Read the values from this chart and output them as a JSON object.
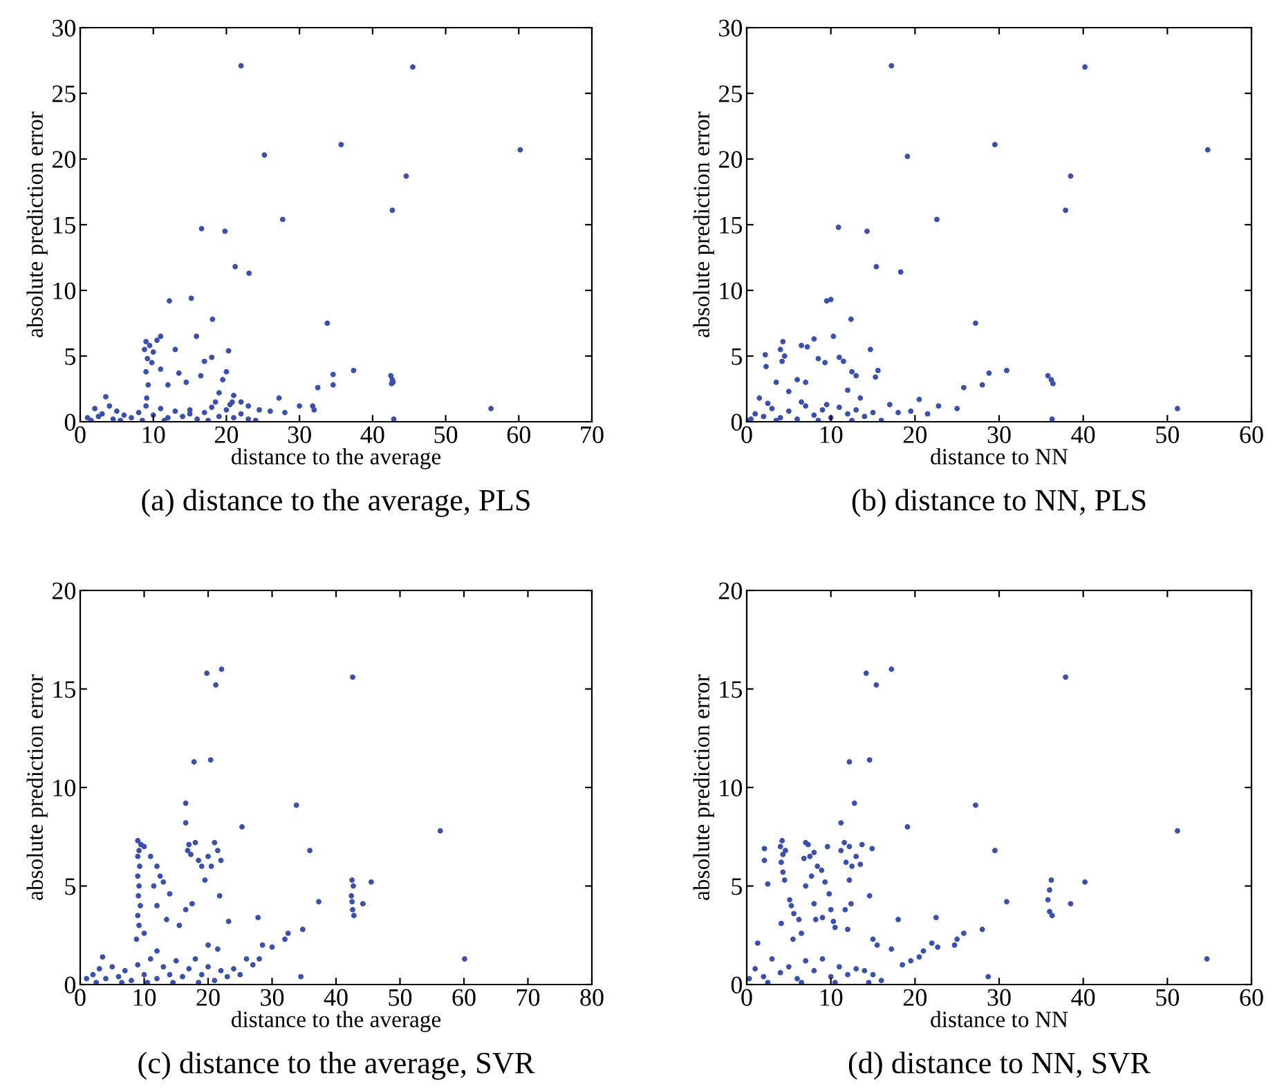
{
  "chart_data": [
    {
      "type": "scatter",
      "title": "(a) distance to the average, PLS",
      "xlabel": "distance to the average",
      "ylabel": "absolute prediction error",
      "marker": "circle",
      "grid": false,
      "xlim": [
        0,
        70
      ],
      "ylim": [
        0,
        30
      ],
      "xticks": [
        0,
        10,
        20,
        30,
        40,
        50,
        60,
        70
      ],
      "yticks": [
        0,
        5,
        10,
        15,
        20,
        25,
        30
      ],
      "series": [
        {
          "color": "#3b4fae",
          "x": [
            22,
            45.5,
            25.2,
            35.7,
            60.2,
            44.6,
            42.7,
            16.6,
            19.8,
            27.7,
            21.2,
            23.1,
            12.2,
            15.2,
            18.1,
            33.8,
            15.9,
            11,
            20.3,
            13,
            34.6,
            37.4,
            34.6,
            32.5,
            42.5,
            42.7,
            42.8,
            42.6,
            56.2,
            42.9,
            27.2,
            30,
            31.8,
            32,
            28,
            26,
            24.5,
            23,
            22,
            21,
            20,
            19.5,
            18,
            17,
            16.5,
            14.5,
            13.5,
            12,
            11,
            9.0,
            8.8,
            9.2,
            9.0,
            9.3,
            9.5,
            10,
            10.5,
            9.8,
            9.1,
            19,
            20.8,
            15,
            3.5,
            2,
            4,
            5,
            1,
            1.5,
            2.5,
            3,
            4.5,
            6,
            7,
            8,
            9,
            10,
            11,
            12,
            13,
            14,
            15,
            16,
            17,
            18,
            19,
            20,
            21,
            22,
            23,
            24,
            5.5,
            8.5,
            11.5,
            17.5,
            18.5,
            20.5
          ],
          "values": [
            27.1,
            27,
            20.3,
            21.1,
            20.7,
            18.7,
            16.1,
            14.7,
            14.5,
            15.4,
            11.8,
            11.3,
            9.2,
            9.4,
            7.8,
            7.5,
            6.5,
            6.5,
            5.4,
            5.5,
            3.6,
            3.9,
            2.8,
            2.6,
            3.5,
            3.2,
            3.0,
            2.9,
            1.0,
            0.2,
            1.8,
            1.2,
            1.2,
            0.9,
            0.7,
            0.8,
            0.9,
            1.2,
            1.5,
            2,
            3.8,
            3.2,
            4.9,
            4.6,
            3.5,
            3.0,
            3.7,
            2.8,
            4.0,
            6.1,
            5.5,
            4.8,
            3.8,
            2.8,
            5.8,
            5.3,
            6.2,
            4.5,
            1.8,
            2.2,
            1.5,
            0.9,
            1.9,
            1.0,
            1.2,
            0.8,
            0.3,
            0.1,
            0.4,
            0.6,
            0.2,
            0.5,
            0.3,
            0.7,
            1.2,
            0.5,
            1.0,
            0.3,
            0.8,
            0.4,
            0.6,
            0.2,
            0.7,
            1.1,
            0.4,
            0.9,
            0.3,
            0.6,
            0.2,
            0.1,
            0.1,
            0.1,
            0.1,
            0.1,
            1.5,
            1.3
          ]
        }
      ]
    },
    {
      "type": "scatter",
      "title": "(b) distance to NN, PLS",
      "xlabel": "distance to NN",
      "ylabel": "absolute prediction error",
      "marker": "circle",
      "grid": false,
      "xlim": [
        0,
        60
      ],
      "ylim": [
        0,
        30
      ],
      "xticks": [
        0,
        10,
        20,
        30,
        40,
        50,
        60
      ],
      "yticks": [
        0,
        5,
        10,
        15,
        20,
        25,
        30
      ],
      "series": [
        {
          "color": "#3b4fae",
          "x": [
            17.2,
            40.2,
            19.1,
            29.5,
            54.8,
            38.5,
            37.9,
            10.9,
            14.3,
            22.6,
            15.4,
            18.3,
            9.5,
            10.0,
            12.4,
            27.2,
            10.3,
            14.7,
            8,
            4.3,
            4,
            4.5,
            4.2,
            2.3,
            2.2,
            6.5,
            7.2,
            8.5,
            9.3,
            11,
            11.5,
            12.5,
            13,
            3.5,
            5,
            6,
            7,
            12,
            13.5,
            15.3,
            15.6,
            20.5,
            22.8,
            25,
            25.8,
            28,
            28.8,
            30.9,
            35.8,
            36.2,
            36.4,
            36.3,
            51.2,
            17,
            18,
            19.5,
            21.5,
            16,
            0.5,
            1,
            1.5,
            2,
            3,
            4,
            5,
            6,
            7,
            8,
            9,
            10,
            11,
            12,
            13,
            14,
            15,
            2.5,
            6.5,
            9.5,
            0.3,
            3.5,
            8.5,
            12.5
          ],
          "values": [
            27.1,
            27,
            20.2,
            21.1,
            20.7,
            18.7,
            16.1,
            14.8,
            14.5,
            15.4,
            11.8,
            11.4,
            9.2,
            9.3,
            7.8,
            7.5,
            6.5,
            5.5,
            6.3,
            6.1,
            5.5,
            5,
            4.6,
            4.2,
            5.1,
            5.8,
            5.7,
            4.8,
            4.5,
            4.9,
            4.6,
            3.8,
            3.5,
            3.0,
            2.3,
            3.2,
            3.0,
            2.4,
            1.8,
            3.4,
            3.9,
            1.7,
            1.2,
            1.0,
            2.6,
            2.8,
            3.7,
            3.9,
            3.5,
            3.2,
            2.9,
            0.2,
            1.0,
            1.3,
            0.7,
            0.8,
            0.6,
            0.1,
            0.2,
            0.6,
            1.8,
            0.4,
            1.0,
            0.3,
            0.8,
            0.2,
            1.2,
            0.5,
            0.9,
            0.3,
            1.1,
            0.6,
            0.9,
            0.4,
            0.7,
            1.4,
            1.5,
            1.3,
            0.1,
            0.1,
            0.1,
            0.1
          ]
        }
      ]
    },
    {
      "type": "scatter",
      "title": "(c) distance to the average, SVR",
      "xlabel": "distance to the average",
      "ylabel": "absolute prediction error",
      "marker": "circle",
      "grid": false,
      "xlim": [
        0,
        80
      ],
      "ylim": [
        0,
        20
      ],
      "xticks": [
        0,
        10,
        20,
        30,
        40,
        50,
        60,
        70,
        80
      ],
      "yticks": [
        0,
        5,
        10,
        15,
        20
      ],
      "series": [
        {
          "color": "#3b4fae",
          "x": [
            19.8,
            22.1,
            21.2,
            42.6,
            17.8,
            20.4,
            16.5,
            33.8,
            16.5,
            25.3,
            56.3,
            35.9,
            9,
            9.5,
            10,
            9.2,
            9,
            9.3,
            9,
            9.2,
            9.1,
            9.4,
            9.0,
            9.2,
            8.8,
            10,
            11,
            12,
            12.5,
            13,
            11.5,
            12,
            13.5,
            14,
            15.5,
            16.5,
            17,
            18,
            16.8,
            17.3,
            18.5,
            19,
            20,
            21,
            20.5,
            21.5,
            22,
            19.5,
            21.8,
            23.2,
            17.5,
            12,
            20,
            21.5,
            26,
            27,
            28,
            27.8,
            28.5,
            30,
            32,
            32.5,
            34.8,
            34.5,
            37.3,
            42.5,
            42.7,
            42.4,
            42.5,
            42.6,
            42.8,
            44.2,
            45.5,
            60.1,
            1,
            2,
            3,
            3.5,
            4,
            5,
            6,
            7,
            8,
            9,
            10,
            11,
            12,
            13,
            14,
            15,
            16,
            17,
            18,
            19,
            20,
            21,
            22,
            23,
            24,
            25,
            2.5,
            6.5,
            10.5,
            14.5,
            18.5
          ],
          "values": [
            15.8,
            16,
            15.2,
            15.6,
            11.3,
            11.4,
            9.2,
            9.1,
            8.2,
            8,
            7.8,
            6.8,
            7.3,
            7.1,
            7,
            6.8,
            6.5,
            6.0,
            5.5,
            5.0,
            4.5,
            4.0,
            3.5,
            3.0,
            2.3,
            2.6,
            6.5,
            6.0,
            5.5,
            5.2,
            5.0,
            4.0,
            3.3,
            4.6,
            3.0,
            3.8,
            7.1,
            7.2,
            6.8,
            6.6,
            6.3,
            6.0,
            6.5,
            7.2,
            6.0,
            6.8,
            6.3,
            5.3,
            4.5,
            3.2,
            4.1,
            1.7,
            2.0,
            1.8,
            1.3,
            1.0,
            1.3,
            3.4,
            2.0,
            1.9,
            2.3,
            2.6,
            2.8,
            0.4,
            4.2,
            5.3,
            5.0,
            4.5,
            4.2,
            3.8,
            3.5,
            4.1,
            5.2,
            1.3,
            0.3,
            0.5,
            0.8,
            1.4,
            0.3,
            0.9,
            0.4,
            0.7,
            0.2,
            1.0,
            0.5,
            1.3,
            0.3,
            0.9,
            0.5,
            1.2,
            0.4,
            0.8,
            1.3,
            0.5,
            0.9,
            0.2,
            0.7,
            0.4,
            0.8,
            0.5,
            0.1,
            0.1,
            0.1,
            0.1,
            0.1
          ]
        }
      ]
    },
    {
      "type": "scatter",
      "title": "(d) distance to NN, SVR",
      "xlabel": "distance to NN",
      "ylabel": "absolute prediction error",
      "marker": "circle",
      "grid": false,
      "xlim": [
        0,
        60
      ],
      "ylim": [
        0,
        20
      ],
      "xticks": [
        0,
        10,
        20,
        30,
        40,
        50,
        60
      ],
      "yticks": [
        0,
        5,
        10,
        15,
        20
      ],
      "series": [
        {
          "color": "#3b4fae",
          "x": [
            14.2,
            17.2,
            15.4,
            37.9,
            12.2,
            14.6,
            12.8,
            27.2,
            11.2,
            19.1,
            51.2,
            29.5,
            2.1,
            2.1,
            2.5,
            4.2,
            4.0,
            4.3,
            4.1,
            4.3,
            4.5,
            4.6,
            5.1,
            5.3,
            5.6,
            6.2,
            4.1,
            5.5,
            6.5,
            7,
            7.3,
            6.8,
            7.5,
            8,
            8.4,
            8.9,
            9.3,
            7,
            7.7,
            8,
            8.2,
            9,
            9.8,
            10,
            10.3,
            10.5,
            9.6,
            11.2,
            11.6,
            12.2,
            11.8,
            12.5,
            13,
            13.7,
            13.5,
            14.9,
            12.2,
            12.4,
            14.6,
            12,
            11.7,
            15,
            15.5,
            18,
            22.5,
            17.2,
            18.5,
            19.5,
            20.5,
            21,
            22,
            22.7,
            24.7,
            25,
            25.8,
            28,
            28.7,
            30.9,
            35.8,
            36,
            36.2,
            36,
            36.3,
            38.5,
            40.2,
            54.7,
            0.3,
            1,
            1.3,
            2,
            3,
            4,
            5,
            6,
            7,
            8,
            9,
            10,
            11,
            12,
            13,
            14,
            15,
            16,
            2.5,
            6.5,
            10.5,
            14.5
          ],
          "values": [
            15.8,
            16,
            15.2,
            15.6,
            11.3,
            11.4,
            9.2,
            9.1,
            8.2,
            8,
            7.8,
            6.8,
            6.9,
            6.3,
            5.1,
            7.3,
            7.0,
            6.6,
            6.2,
            5.7,
            5.3,
            6.8,
            4.3,
            4.0,
            3.6,
            3.3,
            3.1,
            2.3,
            2.6,
            7.2,
            7.1,
            6.4,
            6.5,
            6.7,
            6.0,
            5.8,
            5.2,
            5.0,
            5.5,
            4.1,
            3.3,
            3.4,
            4.6,
            3.8,
            3.2,
            2.9,
            7.0,
            6.8,
            7.2,
            7.0,
            6.2,
            6.0,
            6.5,
            7.1,
            6.1,
            6.9,
            5.3,
            4.1,
            4.5,
            2.8,
            3.8,
            2.3,
            2.0,
            3.3,
            3.4,
            1.8,
            1.0,
            1.2,
            1.4,
            1.7,
            2.1,
            1.9,
            2.0,
            2.3,
            2.6,
            2.8,
            0.4,
            4.2,
            4.3,
            4.8,
            5.3,
            3.7,
            3.5,
            4.1,
            5.2,
            1.3,
            0.3,
            0.8,
            2.1,
            0.4,
            1.3,
            0.6,
            0.9,
            0.3,
            1.2,
            0.7,
            1.3,
            0.4,
            0.9,
            0.5,
            0.8,
            0.7,
            0.5,
            0.2,
            0.1,
            0.1,
            0.1,
            0.1
          ]
        }
      ]
    }
  ]
}
